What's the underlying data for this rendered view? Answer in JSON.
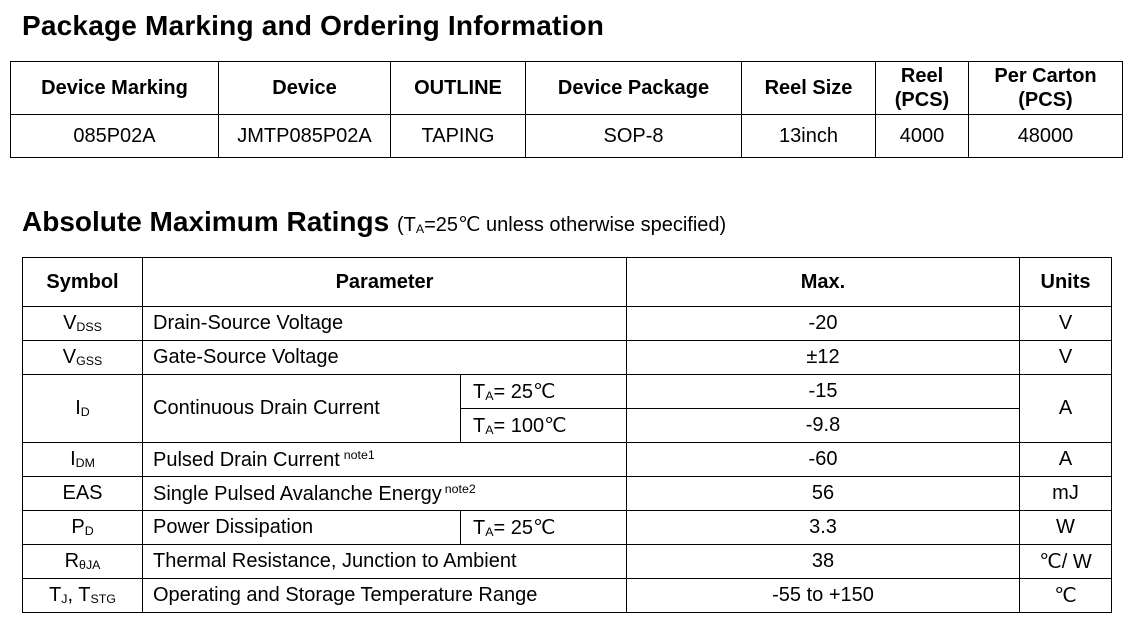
{
  "ordering": {
    "title": "Package Marking and Ordering Information",
    "headers": {
      "marking": "Device Marking",
      "device": "Device",
      "outline": "OUTLINE",
      "package": "Device Package",
      "reel_size": "Reel Size",
      "reel_l1": "Reel",
      "reel_l2": "(PCS)",
      "carton_l1": "Per Carton",
      "carton_l2": "(PCS)"
    },
    "row": {
      "marking": "085P02A",
      "device": "JMTP085P02A",
      "outline": "TAPING",
      "package": "SOP-8",
      "reel_size": "13inch",
      "reel": "4000",
      "carton": "48000"
    }
  },
  "ratings": {
    "title": "Absolute Maximum Ratings",
    "cond_pre": "(T",
    "cond_sub": "A",
    "cond_post": "=25℃ unless otherwise specified)",
    "headers": {
      "symbol": "Symbol",
      "parameter": "Parameter",
      "max": "Max.",
      "units": "Units"
    },
    "rows": {
      "vdss": {
        "sym": "V",
        "sub": "DSS",
        "param": "Drain-Source Voltage",
        "max": "-20",
        "unit": "V"
      },
      "vgss": {
        "sym": "V",
        "sub": "GSS",
        "param": "Gate-Source Voltage",
        "max": "±12",
        "unit": "V"
      },
      "id": {
        "sym": "I",
        "sub": "D",
        "param": "Continuous Drain Current",
        "unit": "A",
        "c1_t": "T",
        "c1_sub": "A",
        "c1_v": "= 25℃",
        "max1": "-15",
        "c2_t": "T",
        "c2_sub": "A",
        "c2_v": "= 100℃",
        "max2": "-9.8"
      },
      "idm": {
        "sym": "I",
        "sub": "DM",
        "param": "Pulsed Drain Current",
        "note": "note1",
        "max": "-60",
        "unit": "A"
      },
      "eas": {
        "sym": "EAS",
        "param": "Single Pulsed Avalanche Energy",
        "note": "note2",
        "max": "56",
        "unit": "mJ"
      },
      "pd": {
        "sym": "P",
        "sub": "D",
        "param": "Power Dissipation",
        "c_t": "T",
        "c_sub": "A",
        "c_v": "= 25℃",
        "max": "3.3",
        "unit": "W"
      },
      "rtja": {
        "sym": "R",
        "sub": "θJA",
        "param": "Thermal Resistance, Junction to Ambient",
        "max": "38",
        "unit": "℃/ W"
      },
      "tj": {
        "sym1": "T",
        "sub1": "J",
        "sep": ", ",
        "sym2": "T",
        "sub2": "STG",
        "param": "Operating and Storage Temperature Range",
        "max": "-55 to +150",
        "unit": "℃"
      }
    }
  }
}
